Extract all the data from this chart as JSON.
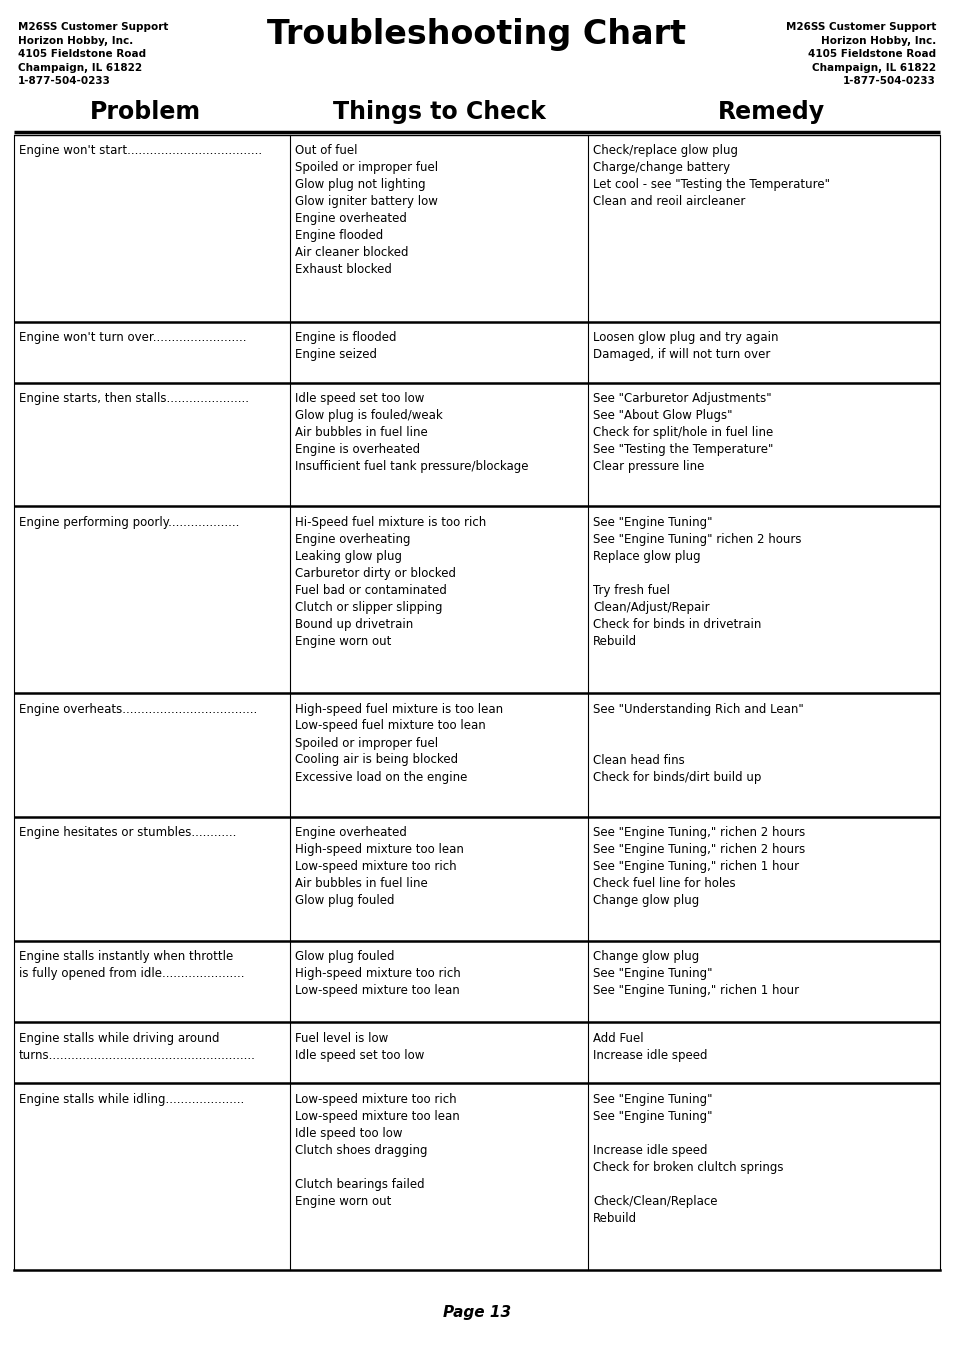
{
  "title": "Troubleshooting Chart",
  "contact_info": "M26SS Customer Support\nHorizon Hobby, Inc.\n4105 Fieldstone Road\nChampaign, IL 61822\n1-877-504-0233",
  "col_headers": [
    "Problem",
    "Things to Check",
    "Remedy"
  ],
  "page": "Page 13",
  "rows": [
    {
      "problem": "Engine won't start....................................",
      "check": "Out of fuel\nSpoiled or improper fuel\nGlow plug not lighting\nGlow igniter battery low\nEngine overheated\nEngine flooded\nAir cleaner blocked\nExhaust blocked",
      "remedy": "Check/replace glow plug\nCharge/change battery\nLet cool - see \"Testing the Temperature\"\nClean and reoil aircleaner"
    },
    {
      "problem": "Engine won't turn over.........................",
      "check": "Engine is flooded\nEngine seized",
      "remedy": "Loosen glow plug and try again\nDamaged, if will not turn over"
    },
    {
      "problem": "Engine starts, then stalls......................",
      "check": "Idle speed set too low\nGlow plug is fouled/weak\nAir bubbles in fuel line\nEngine is overheated\nInsufficient fuel tank pressure/blockage",
      "remedy": "See \"Carburetor Adjustments\"\nSee \"About Glow Plugs\"\nCheck for split/hole in fuel line\nSee \"Testing the Temperature\"\nClear pressure line"
    },
    {
      "problem": "Engine performing poorly...................",
      "check": "Hi-Speed fuel mixture is too rich\nEngine overheating\nLeaking glow plug\nCarburetor dirty or blocked\nFuel bad or contaminated\nClutch or slipper slipping\nBound up drivetrain\nEngine worn out",
      "remedy": "See \"Engine Tuning\"\nSee \"Engine Tuning\" richen 2 hours\nReplace glow plug\n\nTry fresh fuel\nClean/Adjust/Repair\nCheck for binds in drivetrain\nRebuild"
    },
    {
      "problem": "Engine overheats....................................",
      "check": "High-speed fuel mixture is too lean\nLow-speed fuel mixture too lean\nSpoiled or improper fuel\nCooling air is being blocked\nExcessive load on the engine",
      "remedy": "See \"Understanding Rich and Lean\"\n\n\nClean head fins\nCheck for binds/dirt build up"
    },
    {
      "problem": "Engine hesitates or stumbles............",
      "check": "Engine overheated\nHigh-speed mixture too lean\nLow-speed mixture too rich\nAir bubbles in fuel line\nGlow plug fouled",
      "remedy": "See \"Engine Tuning,\" richen 2 hours\nSee \"Engine Tuning,\" richen 2 hours\nSee \"Engine Tuning,\" richen 1 hour\nCheck fuel line for holes\nChange glow plug"
    },
    {
      "problem": "Engine stalls instantly when throttle\nis fully opened from idle......................",
      "check": "Glow plug fouled\nHigh-speed mixture too rich\nLow-speed mixture too lean",
      "remedy": "Change glow plug\nSee \"Engine Tuning\"\nSee \"Engine Tuning,\" richen 1 hour"
    },
    {
      "problem": "Engine stalls while driving around\nturns.......................................................",
      "check": "Fuel level is low\nIdle speed set too low",
      "remedy": "Add Fuel\nIncrease idle speed"
    },
    {
      "problem": "Engine stalls while idling.....................",
      "check": "Low-speed mixture too rich\nLow-speed mixture too lean\nIdle speed too low\nClutch shoes dragging\n\nClutch bearings failed\nEngine worn out",
      "remedy": "See \"Engine Tuning\"\nSee \"Engine Tuning\"\n\nIncrease idle speed\nCheck for broken clultch springs\n\nCheck/Clean/Replace\nRebuild"
    }
  ],
  "bg_color": "#ffffff",
  "text_color": "#000000"
}
